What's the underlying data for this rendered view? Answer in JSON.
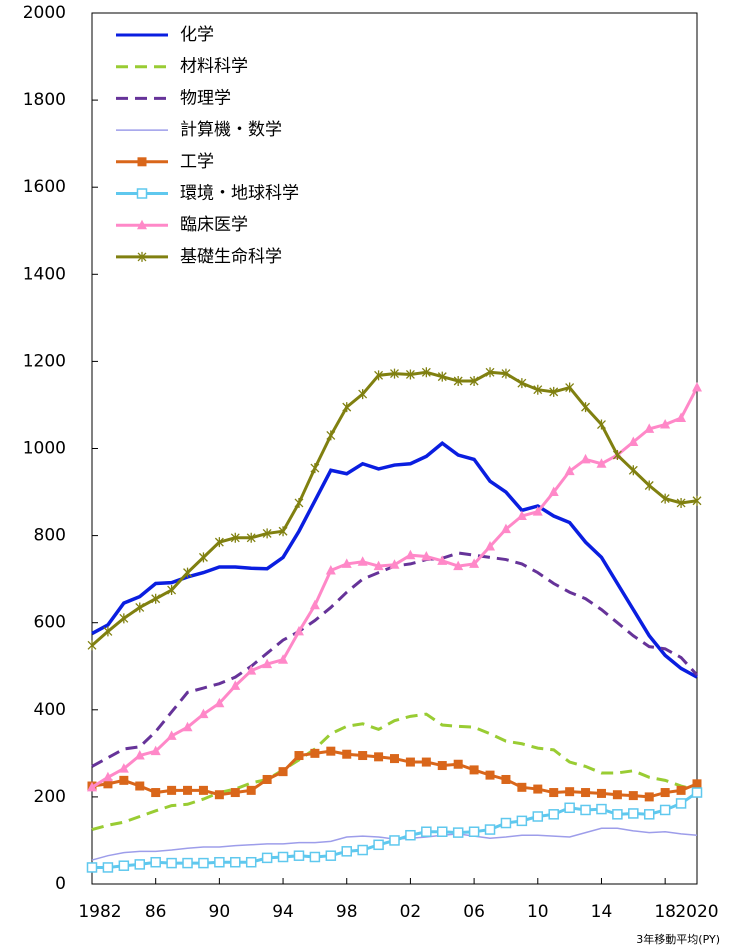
{
  "chart_data": {
    "type": "line",
    "x_note": "3年移動平均(PY)",
    "x": [
      1982,
      1983,
      1984,
      1985,
      1986,
      1987,
      1988,
      1989,
      1990,
      1991,
      1992,
      1993,
      1994,
      1995,
      1996,
      1997,
      1998,
      1999,
      2000,
      2001,
      2002,
      2003,
      2004,
      2005,
      2006,
      2007,
      2008,
      2009,
      2010,
      2011,
      2012,
      2013,
      2014,
      2015,
      2016,
      2017,
      2018,
      2019,
      2020
    ],
    "xlim": [
      1982,
      2020
    ],
    "xticks": [
      1982,
      {
        "value": 1986,
        "label": "86"
      },
      {
        "value": 1990,
        "label": "90"
      },
      {
        "value": 1994,
        "label": "94"
      },
      {
        "value": 1998,
        "label": "98"
      },
      {
        "value": 2002,
        "label": "02"
      },
      {
        "value": 2006,
        "label": "06"
      },
      {
        "value": 2010,
        "label": "10"
      },
      {
        "value": 2014,
        "label": "14"
      },
      {
        "value": 2018,
        "label": "18"
      },
      2020
    ],
    "ylim": [
      0,
      2000
    ],
    "yticks": [
      0,
      200,
      400,
      600,
      800,
      1000,
      1200,
      1400,
      1600,
      1800,
      2000
    ],
    "legend": "upper left",
    "series": [
      {
        "name": "化学",
        "color": "#0a1ee0",
        "dash": false,
        "marker": "none",
        "values": [
          575,
          595,
          645,
          660,
          690,
          692,
          705,
          715,
          728,
          728,
          725,
          724,
          750,
          810,
          880,
          950,
          942,
          965,
          953,
          962,
          965,
          982,
          1012,
          985,
          975,
          925,
          900,
          858,
          868,
          845,
          830,
          785,
          750,
          690,
          630,
          570,
          525,
          495,
          475
        ]
      },
      {
        "name": "材料科学",
        "color": "#99cc33",
        "dash": true,
        "marker": "none",
        "values": [
          125,
          135,
          142,
          155,
          168,
          180,
          183,
          195,
          210,
          218,
          232,
          240,
          262,
          285,
          310,
          345,
          362,
          368,
          355,
          375,
          385,
          390,
          365,
          362,
          360,
          345,
          328,
          322,
          312,
          308,
          280,
          270,
          255,
          255,
          260,
          245,
          238,
          225,
          215
        ]
      },
      {
        "name": "物理学",
        "color": "#663399",
        "dash": true,
        "marker": "none",
        "values": [
          270,
          290,
          310,
          315,
          350,
          395,
          440,
          450,
          460,
          475,
          500,
          530,
          560,
          580,
          605,
          635,
          670,
          700,
          715,
          730,
          735,
          745,
          748,
          760,
          755,
          750,
          745,
          735,
          715,
          690,
          670,
          655,
          630,
          600,
          570,
          545,
          540,
          520,
          480
        ]
      },
      {
        "name": "計算機・数学",
        "color": "#9d9dea",
        "dash": false,
        "marker": "none",
        "values": [
          55,
          65,
          72,
          75,
          75,
          78,
          82,
          85,
          85,
          88,
          90,
          92,
          92,
          95,
          95,
          98,
          108,
          110,
          108,
          103,
          105,
          108,
          112,
          115,
          110,
          105,
          108,
          112,
          112,
          110,
          108,
          118,
          128,
          128,
          122,
          118,
          120,
          115,
          112
        ]
      },
      {
        "name": "工学",
        "color": "#d9661a",
        "dash": false,
        "marker": "square",
        "values": [
          225,
          230,
          238,
          225,
          210,
          215,
          215,
          215,
          205,
          210,
          215,
          240,
          258,
          295,
          300,
          305,
          298,
          295,
          292,
          288,
          280,
          280,
          272,
          275,
          262,
          250,
          240,
          222,
          218,
          210,
          212,
          210,
          208,
          205,
          203,
          200,
          210,
          215,
          230
        ]
      },
      {
        "name": "環境・地球科学",
        "color": "#5fc8ee",
        "dash": false,
        "marker": "square-open",
        "values": [
          38,
          38,
          42,
          45,
          50,
          48,
          48,
          48,
          50,
          50,
          50,
          60,
          62,
          65,
          62,
          65,
          75,
          78,
          90,
          100,
          112,
          120,
          120,
          118,
          120,
          125,
          140,
          145,
          155,
          160,
          175,
          170,
          172,
          160,
          162,
          160,
          170,
          185,
          210
        ]
      },
      {
        "name": "臨床医学",
        "color": "#ff88c8",
        "dash": false,
        "marker": "triangle",
        "values": [
          222,
          245,
          265,
          295,
          305,
          340,
          360,
          390,
          415,
          455,
          490,
          505,
          515,
          580,
          640,
          720,
          735,
          740,
          730,
          733,
          755,
          752,
          742,
          730,
          735,
          775,
          815,
          845,
          855,
          900,
          948,
          975,
          965,
          985,
          1015,
          1045,
          1055,
          1070,
          1140
        ]
      },
      {
        "name": "基礎生命科学",
        "color": "#808010",
        "dash": false,
        "marker": "x",
        "values": [
          548,
          580,
          610,
          635,
          655,
          675,
          715,
          750,
          785,
          795,
          795,
          805,
          810,
          875,
          955,
          1030,
          1095,
          1125,
          1168,
          1172,
          1170,
          1175,
          1165,
          1155,
          1155,
          1175,
          1172,
          1150,
          1135,
          1130,
          1140,
          1095,
          1055,
          985,
          950,
          915,
          885,
          875,
          880
        ]
      }
    ]
  }
}
